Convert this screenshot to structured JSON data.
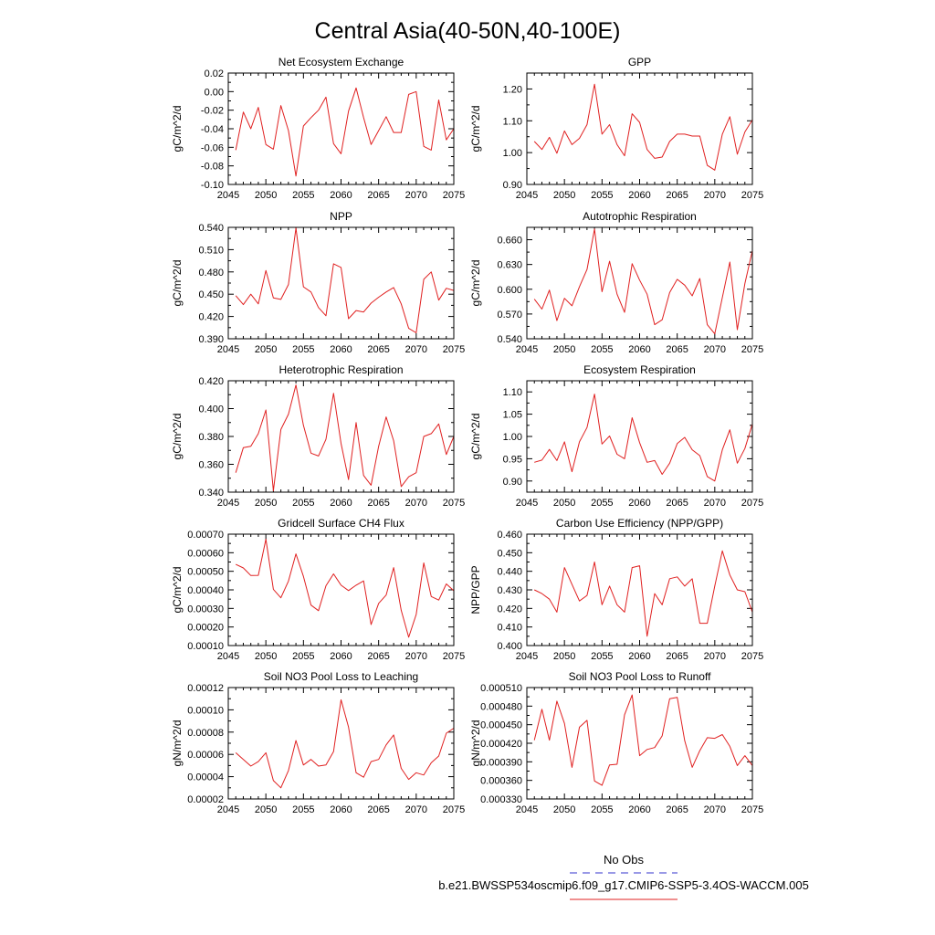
{
  "figure": {
    "title": "Central Asia(40-50N,40-100E)"
  },
  "legend": {
    "obs_label": "No Obs",
    "obs_color": "#3333cc",
    "model_label": "b.e21.BWSSP534oscmip6.f09_g17.CMIP6-SSP5-3.4OS-WACCM.005",
    "model_color": "#e02020"
  },
  "chart_data": [
    {
      "type": "line",
      "title": "Net Ecosystem Exchange",
      "ylabel": "gC/m^2/d",
      "xlim": [
        2045,
        2075
      ],
      "ylim": [
        -0.1,
        0.02
      ],
      "xticks": [
        "2045",
        "2050",
        "2055",
        "2060",
        "2065",
        "2070",
        "2075"
      ],
      "yticks": [
        "-0.10",
        "-0.08",
        "-0.06",
        "-0.04",
        "-0.02",
        "0.00",
        "0.02"
      ],
      "series": [
        {
          "name": "b.e21.BWSSP534oscmip6.f09_g17.CMIP6-SSP5-3.4OS-WACCM.005",
          "x": [
            2046,
            2047,
            2048,
            2049,
            2050,
            2051,
            2052,
            2053,
            2054,
            2055,
            2056,
            2057,
            2058,
            2059,
            2060,
            2061,
            2062,
            2063,
            2064,
            2065,
            2066,
            2067,
            2068,
            2069,
            2070,
            2071,
            2072,
            2073,
            2074,
            2075
          ],
          "values": [
            -0.063,
            -0.022,
            -0.04,
            -0.017,
            -0.057,
            -0.062,
            -0.015,
            -0.042,
            -0.091,
            -0.037,
            -0.028,
            -0.02,
            -0.006,
            -0.056,
            -0.067,
            -0.021,
            0.004,
            -0.028,
            -0.057,
            -0.042,
            -0.027,
            -0.044,
            -0.044,
            -0.003,
            0.0,
            -0.059,
            -0.063,
            -0.009,
            -0.052,
            -0.04
          ]
        }
      ]
    },
    {
      "type": "line",
      "title": "GPP",
      "ylabel": "gC/m^2/d",
      "xlim": [
        2045,
        2075
      ],
      "ylim": [
        0.9,
        1.25
      ],
      "xticks": [
        "2045",
        "2050",
        "2055",
        "2060",
        "2065",
        "2070",
        "2075"
      ],
      "yticks": [
        "0.90",
        "1.00",
        "1.10",
        "1.20"
      ],
      "series": [
        {
          "name": "b.e21.BWSSP534oscmip6.f09_g17.CMIP6-SSP5-3.4OS-WACCM.005",
          "x": [
            2046,
            2047,
            2048,
            2049,
            2050,
            2051,
            2052,
            2053,
            2054,
            2055,
            2056,
            2057,
            2058,
            2059,
            2060,
            2061,
            2062,
            2063,
            2064,
            2065,
            2066,
            2067,
            2068,
            2069,
            2070,
            2071,
            2072,
            2073,
            2074,
            2075
          ],
          "values": [
            1.035,
            1.01,
            1.048,
            0.998,
            1.068,
            1.025,
            1.045,
            1.088,
            1.215,
            1.058,
            1.088,
            1.025,
            0.99,
            1.122,
            1.095,
            1.01,
            0.982,
            0.986,
            1.035,
            1.058,
            1.058,
            1.052,
            1.052,
            0.96,
            0.945,
            1.058,
            1.113,
            0.995,
            1.065,
            1.103
          ]
        }
      ]
    },
    {
      "type": "line",
      "title": "NPP",
      "ylabel": "gC/m^2/d",
      "xlim": [
        2045,
        2075
      ],
      "ylim": [
        0.39,
        0.54
      ],
      "xticks": [
        "2045",
        "2050",
        "2055",
        "2060",
        "2065",
        "2070",
        "2075"
      ],
      "yticks": [
        "0.390",
        "0.420",
        "0.450",
        "0.480",
        "0.510",
        "0.540"
      ],
      "series": [
        {
          "name": "b.e21.BWSSP534oscmip6.f09_g17.CMIP6-SSP5-3.4OS-WACCM.005",
          "x": [
            2046,
            2047,
            2048,
            2049,
            2050,
            2051,
            2052,
            2053,
            2054,
            2055,
            2056,
            2057,
            2058,
            2059,
            2060,
            2061,
            2062,
            2063,
            2064,
            2065,
            2066,
            2067,
            2068,
            2069,
            2070,
            2071,
            2072,
            2073,
            2074,
            2075
          ],
          "values": [
            0.448,
            0.436,
            0.45,
            0.437,
            0.482,
            0.445,
            0.443,
            0.463,
            0.539,
            0.46,
            0.453,
            0.432,
            0.421,
            0.491,
            0.486,
            0.417,
            0.428,
            0.426,
            0.438,
            0.446,
            0.453,
            0.459,
            0.437,
            0.404,
            0.398,
            0.47,
            0.48,
            0.442,
            0.458,
            0.455
          ]
        }
      ]
    },
    {
      "type": "line",
      "title": "Autotrophic Respiration",
      "ylabel": "gC/m^2/d",
      "xlim": [
        2045,
        2075
      ],
      "ylim": [
        0.54,
        0.675
      ],
      "xticks": [
        "2045",
        "2050",
        "2055",
        "2060",
        "2065",
        "2070",
        "2075"
      ],
      "yticks": [
        "0.540",
        "0.570",
        "0.600",
        "0.630",
        "0.660"
      ],
      "series": [
        {
          "name": "b.e21.BWSSP534oscmip6.f09_g17.CMIP6-SSP5-3.4OS-WACCM.005",
          "x": [
            2046,
            2047,
            2048,
            2049,
            2050,
            2051,
            2052,
            2053,
            2054,
            2055,
            2056,
            2057,
            2058,
            2059,
            2060,
            2061,
            2062,
            2063,
            2064,
            2065,
            2066,
            2067,
            2068,
            2069,
            2070,
            2071,
            2072,
            2073,
            2074,
            2075
          ],
          "values": [
            0.588,
            0.576,
            0.599,
            0.562,
            0.589,
            0.58,
            0.603,
            0.624,
            0.673,
            0.597,
            0.634,
            0.594,
            0.572,
            0.631,
            0.611,
            0.594,
            0.557,
            0.563,
            0.596,
            0.612,
            0.605,
            0.592,
            0.613,
            0.557,
            0.546,
            0.59,
            0.633,
            0.551,
            0.607,
            0.647
          ]
        }
      ]
    },
    {
      "type": "line",
      "title": "Heterotrophic Respiration",
      "ylabel": "gC/m^2/d",
      "xlim": [
        2045,
        2075
      ],
      "ylim": [
        0.34,
        0.42
      ],
      "xticks": [
        "2045",
        "2050",
        "2055",
        "2060",
        "2065",
        "2070",
        "2075"
      ],
      "yticks": [
        "0.340",
        "0.360",
        "0.380",
        "0.400",
        "0.420"
      ],
      "series": [
        {
          "name": "b.e21.BWSSP534oscmip6.f09_g17.CMIP6-SSP5-3.4OS-WACCM.005",
          "x": [
            2046,
            2047,
            2048,
            2049,
            2050,
            2051,
            2052,
            2053,
            2054,
            2055,
            2056,
            2057,
            2058,
            2059,
            2060,
            2061,
            2062,
            2063,
            2064,
            2065,
            2066,
            2067,
            2068,
            2069,
            2070,
            2071,
            2072,
            2073,
            2074,
            2075
          ],
          "values": [
            0.354,
            0.372,
            0.373,
            0.382,
            0.399,
            0.341,
            0.385,
            0.396,
            0.417,
            0.388,
            0.368,
            0.366,
            0.378,
            0.411,
            0.375,
            0.349,
            0.39,
            0.352,
            0.345,
            0.373,
            0.394,
            0.377,
            0.344,
            0.351,
            0.354,
            0.38,
            0.382,
            0.389,
            0.367,
            0.38
          ]
        }
      ]
    },
    {
      "type": "line",
      "title": "Ecosystem Respiration",
      "ylabel": "gC/m^2/d",
      "xlim": [
        2045,
        2075
      ],
      "ylim": [
        0.875,
        1.125
      ],
      "xticks": [
        "2045",
        "2050",
        "2055",
        "2060",
        "2065",
        "2070",
        "2075"
      ],
      "yticks": [
        "0.90",
        "0.95",
        "1.00",
        "1.05",
        "1.10"
      ],
      "series": [
        {
          "name": "b.e21.BWSSP534oscmip6.f09_g17.CMIP6-SSP5-3.4OS-WACCM.005",
          "x": [
            2046,
            2047,
            2048,
            2049,
            2050,
            2051,
            2052,
            2053,
            2054,
            2055,
            2056,
            2057,
            2058,
            2059,
            2060,
            2061,
            2062,
            2063,
            2064,
            2065,
            2066,
            2067,
            2068,
            2069,
            2070,
            2071,
            2072,
            2073,
            2074,
            2075
          ],
          "values": [
            0.942,
            0.947,
            0.971,
            0.946,
            0.988,
            0.921,
            0.988,
            1.02,
            1.095,
            0.983,
            1.001,
            0.96,
            0.95,
            1.042,
            0.986,
            0.942,
            0.946,
            0.915,
            0.94,
            0.984,
            0.998,
            0.97,
            0.957,
            0.91,
            0.9,
            0.97,
            1.015,
            0.94,
            0.973,
            1.028
          ]
        }
      ]
    },
    {
      "type": "line",
      "title": "Gridcell Surface CH4 Flux",
      "ylabel": "gC/m^2/d",
      "xlim": [
        2045,
        2075
      ],
      "ylim": [
        0.0001,
        0.0007
      ],
      "xticks": [
        "2045",
        "2050",
        "2055",
        "2060",
        "2065",
        "2070",
        "2075"
      ],
      "yticks": [
        "0.00010",
        "0.00020",
        "0.00030",
        "0.00040",
        "0.00050",
        "0.00060",
        "0.00070"
      ],
      "series": [
        {
          "name": "b.e21.BWSSP534oscmip6.f09_g17.CMIP6-SSP5-3.4OS-WACCM.005",
          "x": [
            2046,
            2047,
            2048,
            2049,
            2050,
            2051,
            2052,
            2053,
            2054,
            2055,
            2056,
            2057,
            2058,
            2059,
            2060,
            2061,
            2062,
            2063,
            2064,
            2065,
            2066,
            2067,
            2068,
            2069,
            2070,
            2071,
            2072,
            2073,
            2074,
            2075
          ],
          "values": [
            0.000537,
            0.000518,
            0.000477,
            0.000478,
            0.000673,
            0.000403,
            0.000357,
            0.000447,
            0.000594,
            0.000473,
            0.000318,
            0.000288,
            0.000422,
            0.000486,
            0.000425,
            0.000396,
            0.000425,
            0.000448,
            0.000213,
            0.000327,
            0.000372,
            0.00052,
            0.00029,
            0.000145,
            0.000267,
            0.000545,
            0.000364,
            0.000345,
            0.000432,
            0.000395
          ]
        }
      ]
    },
    {
      "type": "line",
      "title": "Carbon Use Efficiency (NPP/GPP)",
      "ylabel": "NPP/GPP",
      "xlim": [
        2045,
        2075
      ],
      "ylim": [
        0.4,
        0.46
      ],
      "xticks": [
        "2045",
        "2050",
        "2055",
        "2060",
        "2065",
        "2070",
        "2075"
      ],
      "yticks": [
        "0.400",
        "0.410",
        "0.420",
        "0.430",
        "0.440",
        "0.450",
        "0.460"
      ],
      "series": [
        {
          "name": "b.e21.BWSSP534oscmip6.f09_g17.CMIP6-SSP5-3.4OS-WACCM.005",
          "x": [
            2046,
            2047,
            2048,
            2049,
            2050,
            2051,
            2052,
            2053,
            2054,
            2055,
            2056,
            2057,
            2058,
            2059,
            2060,
            2061,
            2062,
            2063,
            2064,
            2065,
            2066,
            2067,
            2068,
            2069,
            2070,
            2071,
            2072,
            2073,
            2074,
            2075
          ],
          "values": [
            0.43,
            0.428,
            0.425,
            0.418,
            0.442,
            0.433,
            0.424,
            0.427,
            0.445,
            0.422,
            0.432,
            0.422,
            0.418,
            0.442,
            0.443,
            0.405,
            0.428,
            0.422,
            0.436,
            0.437,
            0.432,
            0.436,
            0.412,
            0.412,
            0.432,
            0.451,
            0.438,
            0.43,
            0.429,
            0.418
          ]
        }
      ]
    },
    {
      "type": "line",
      "title": "Soil NO3 Pool Loss to Leaching",
      "ylabel": "gN/m^2/d",
      "xlim": [
        2045,
        2075
      ],
      "ylim": [
        2e-05,
        0.00012
      ],
      "xticks": [
        "2045",
        "2050",
        "2055",
        "2060",
        "2065",
        "2070",
        "2075"
      ],
      "yticks": [
        "0.00002",
        "0.00004",
        "0.00006",
        "0.00008",
        "0.00010",
        "0.00012"
      ],
      "series": [
        {
          "name": "b.e21.BWSSP534oscmip6.f09_g17.CMIP6-SSP5-3.4OS-WACCM.005",
          "x": [
            2046,
            2047,
            2048,
            2049,
            2050,
            2051,
            2052,
            2053,
            2054,
            2055,
            2056,
            2057,
            2058,
            2059,
            2060,
            2061,
            2062,
            2063,
            2064,
            2065,
            2066,
            2067,
            2068,
            2069,
            2070,
            2071,
            2072,
            2073,
            2074,
            2075
          ],
          "values": [
            6.15e-05,
            5.55e-05,
            4.95e-05,
            5.35e-05,
            6.15e-05,
            3.65e-05,
            3e-05,
            4.55e-05,
            7.25e-05,
            5.05e-05,
            5.55e-05,
            4.95e-05,
            5.05e-05,
            6.25e-05,
            0.000109,
            8.45e-05,
            4.35e-05,
            3.95e-05,
            5.35e-05,
            5.55e-05,
            6.85e-05,
            7.75e-05,
            4.75e-05,
            3.75e-05,
            4.35e-05,
            4.15e-05,
            5.25e-05,
            5.85e-05,
            7.9e-05,
            8.35e-05
          ]
        }
      ]
    },
    {
      "type": "line",
      "title": "Soil NO3 Pool Loss to Runoff",
      "ylabel": "gN/m^2/d",
      "xlim": [
        2045,
        2075
      ],
      "ylim": [
        0.00033,
        0.00051
      ],
      "xticks": [
        "2045",
        "2050",
        "2055",
        "2060",
        "2065",
        "2070",
        "2075"
      ],
      "yticks": [
        "0.000330",
        "0.000360",
        "0.000390",
        "0.000420",
        "0.000450",
        "0.000480",
        "0.000510"
      ],
      "series": [
        {
          "name": "b.e21.BWSSP534oscmip6.f09_g17.CMIP6-SSP5-3.4OS-WACCM.005",
          "x": [
            2046,
            2047,
            2048,
            2049,
            2050,
            2051,
            2052,
            2053,
            2054,
            2055,
            2056,
            2057,
            2058,
            2059,
            2060,
            2061,
            2062,
            2063,
            2064,
            2065,
            2066,
            2067,
            2068,
            2069,
            2070,
            2071,
            2072,
            2073,
            2074,
            2075
          ],
          "values": [
            0.000425,
            0.000475,
            0.000425,
            0.000488,
            0.000452,
            0.000381,
            0.000446,
            0.000457,
            0.000359,
            0.000352,
            0.000385,
            0.000386,
            0.000466,
            0.000498,
            0.0004,
            0.00041,
            0.000413,
            0.000432,
            0.000492,
            0.000494,
            0.000424,
            0.000381,
            0.000408,
            0.000429,
            0.000428,
            0.000434,
            0.000415,
            0.000384,
            0.0004,
            0.000384
          ]
        }
      ]
    }
  ]
}
